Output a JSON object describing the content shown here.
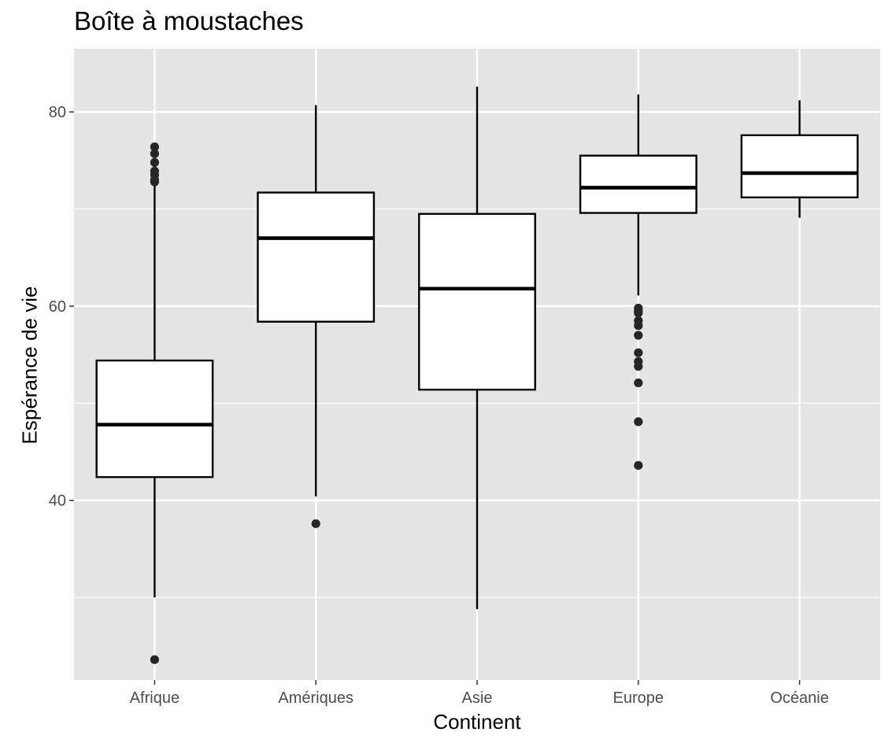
{
  "chart_data": {
    "type": "boxplot",
    "title": "Boîte à moustaches",
    "xlabel": "Continent",
    "ylabel": "Espérance de vie",
    "categories": [
      "Afrique",
      "Amériques",
      "Asie",
      "Europe",
      "Océanie"
    ],
    "ylim": [
      21.5,
      86.5
    ],
    "yticks": [
      40,
      60,
      80
    ],
    "grid": true,
    "panel_background": "#e5e5e5",
    "grid_color": "#ffffff",
    "box_fill": "#ffffff",
    "line_color": "#000000",
    "outlier_color": "#262626",
    "boxes": [
      {
        "category": "Afrique",
        "whisker_low": 30.0,
        "q1": 42.4,
        "median": 47.8,
        "q3": 54.4,
        "whisker_high": 72.8,
        "outliers": [
          76.4,
          75.7,
          74.8,
          73.9,
          73.5,
          73.0,
          72.8,
          23.6
        ]
      },
      {
        "category": "Amériques",
        "whisker_low": 40.4,
        "q1": 58.4,
        "median": 67.0,
        "q3": 71.7,
        "whisker_high": 80.7,
        "outliers": [
          37.6
        ]
      },
      {
        "category": "Asie",
        "whisker_low": 28.8,
        "q1": 51.4,
        "median": 61.8,
        "q3": 69.5,
        "whisker_high": 82.6,
        "outliers": []
      },
      {
        "category": "Europe",
        "whisker_low": 61.1,
        "q1": 69.6,
        "median": 72.2,
        "q3": 75.5,
        "whisker_high": 81.8,
        "outliers": [
          59.8,
          59.5,
          59.3,
          58.5,
          58.0,
          57.0,
          55.2,
          54.3,
          53.8,
          52.1,
          48.1,
          43.6
        ]
      },
      {
        "category": "Océanie",
        "whisker_low": 69.1,
        "q1": 71.2,
        "median": 73.7,
        "q3": 77.6,
        "whisker_high": 81.2,
        "outliers": []
      }
    ]
  }
}
